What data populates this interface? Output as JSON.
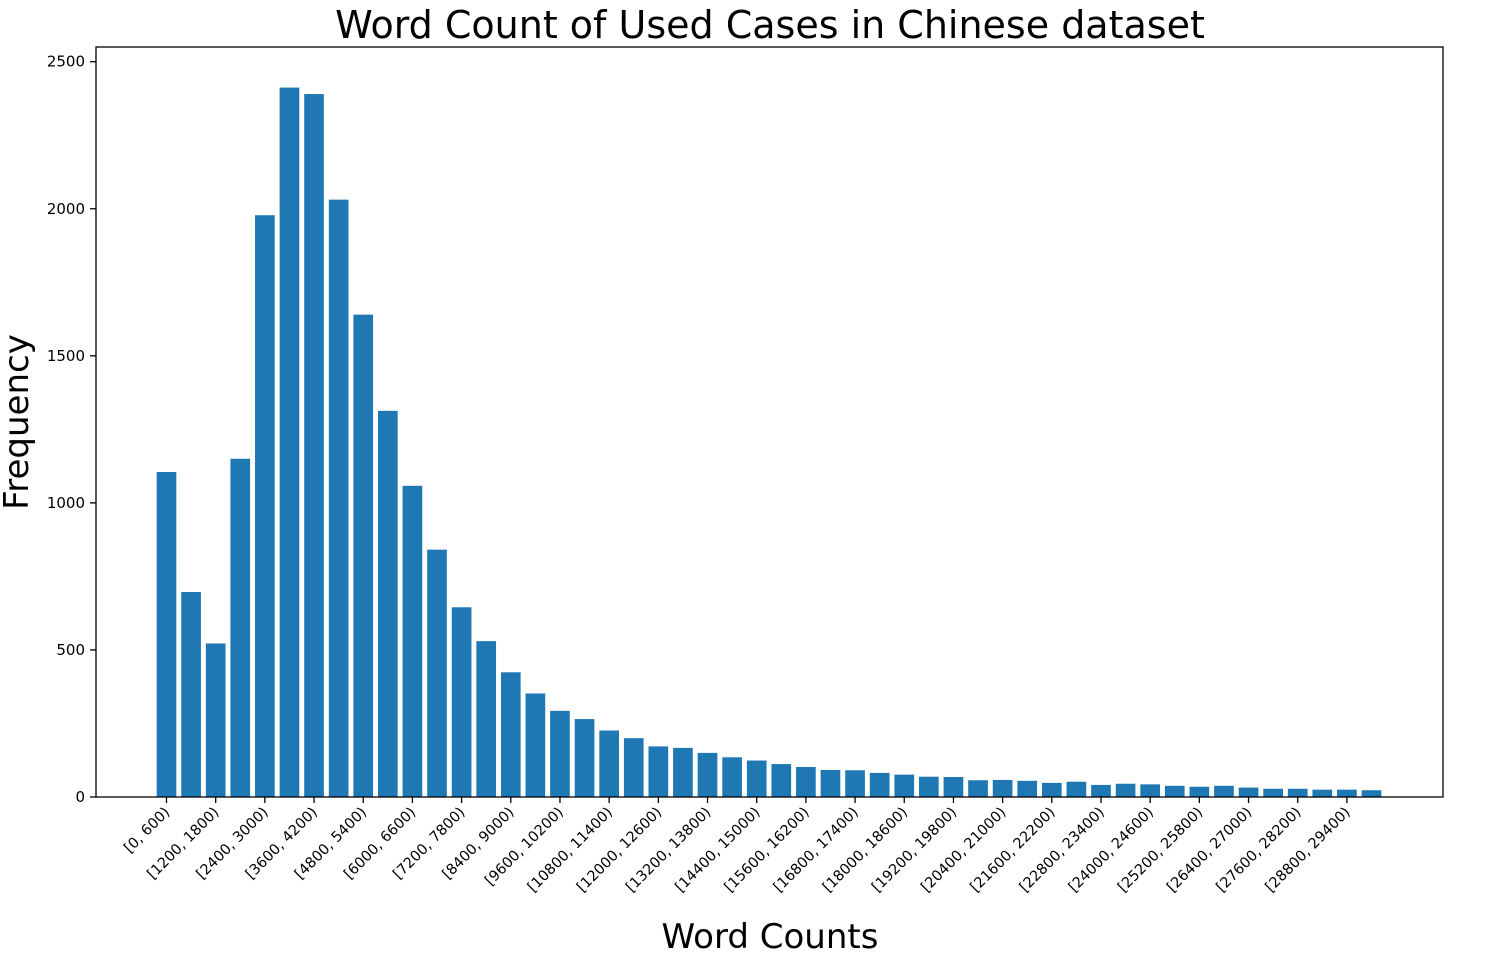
{
  "chart_data": {
    "type": "bar",
    "title": "Word Count of Used Cases in Chinese dataset",
    "xlabel": "Word Counts",
    "ylabel": "Frequency",
    "ylim": [
      0,
      2550
    ],
    "yticks": [
      0,
      500,
      1000,
      1500,
      2000,
      2500
    ],
    "grid": false,
    "color": "#1f77b4",
    "categories": [
      "[0, 600)",
      "[600, 1200)",
      "[1200, 1800)",
      "[1800, 2400)",
      "[2400, 3000)",
      "[3000, 3600)",
      "[3600, 4200)",
      "[4200, 4800)",
      "[4800, 5400)",
      "[5400, 6000)",
      "[6000, 6600)",
      "[6600, 7200)",
      "[7200, 7800)",
      "[7800, 8400)",
      "[8400, 9000)",
      "[9000, 9600)",
      "[9600, 10200)",
      "[10200, 10800)",
      "[10800, 11400)",
      "[11400, 12000)",
      "[12000, 12600)",
      "[12600, 13200)",
      "[13200, 13800)",
      "[13800, 14400)",
      "[14400, 15000)",
      "[15000, 15600)",
      "[15600, 16200)",
      "[16200, 16800)",
      "[16800, 17400)",
      "[17400, 18000)",
      "[18000, 18600)",
      "[18600, 19200)",
      "[19200, 19800)",
      "[19800, 20400)",
      "[20400, 21000)",
      "[21000, 21600)",
      "[21600, 22200)",
      "[22200, 22800)",
      "[22800, 23400)",
      "[23400, 24000)",
      "[24000, 24600)",
      "[24600, 25200)",
      "[25200, 25800)",
      "[25800, 26400)",
      "[26400, 27000)",
      "[27000, 27600)",
      "[27600, 28200)",
      "[28200, 28800)",
      "[28800, 29400)",
      "[29400, 30000)"
    ],
    "values": [
      1105,
      697,
      522,
      1150,
      1978,
      2412,
      2390,
      2031,
      1640,
      1313,
      1058,
      841,
      645,
      530,
      424,
      352,
      293,
      265,
      226,
      200,
      172,
      167,
      150,
      135,
      124,
      112,
      102,
      92,
      91,
      82,
      76,
      69,
      68,
      57,
      58,
      55,
      48,
      52,
      41,
      45,
      43,
      38,
      35,
      38,
      32,
      28,
      28,
      25,
      25,
      23
    ],
    "tick_label_every": 2
  }
}
